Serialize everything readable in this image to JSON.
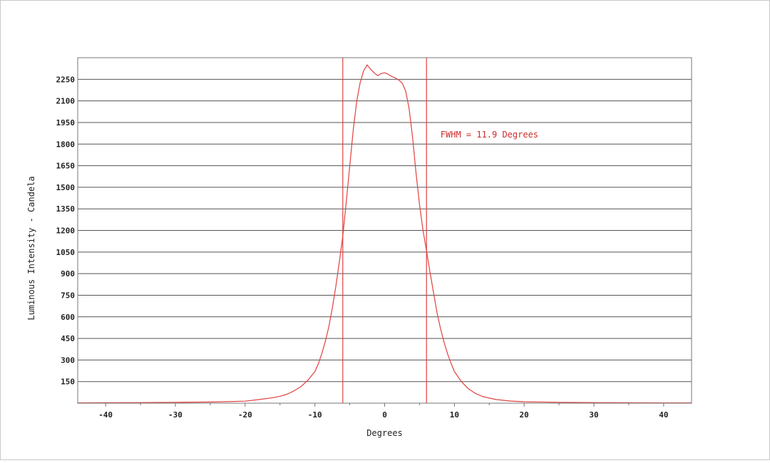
{
  "chart_data": {
    "type": "line",
    "title": "",
    "xlabel": "Degrees",
    "ylabel": "Luminous Intensity - Candela",
    "xlim": [
      -44,
      44
    ],
    "ylim": [
      0,
      2400
    ],
    "x_ticks": [
      -40,
      -30,
      -20,
      -10,
      0,
      10,
      20,
      30,
      40
    ],
    "x_tick_labels": [
      "-40",
      "-30",
      "-20",
      "-10",
      "0",
      "10",
      "20",
      "30",
      "40"
    ],
    "y_ticks": [
      150,
      300,
      450,
      600,
      750,
      900,
      1050,
      1200,
      1350,
      1500,
      1650,
      1800,
      1950,
      2100,
      2250
    ],
    "y_tick_labels": [
      "150",
      "300",
      "450",
      "600",
      "750",
      "900",
      "1050",
      "1200",
      "1350",
      "1500",
      "1650",
      "1800",
      "1950",
      "2100",
      "2250"
    ],
    "grid": "horizontal",
    "series": [
      {
        "color": "#e0413f",
        "x": [
          -44,
          -40,
          -35,
          -30,
          -25,
          -20,
          -18,
          -16,
          -15,
          -14,
          -13,
          -12,
          -11,
          -10,
          -9.5,
          -9,
          -8.5,
          -8,
          -7.5,
          -7,
          -6.5,
          -6,
          -5.5,
          -5,
          -4.5,
          -4,
          -3.5,
          -3,
          -2.5,
          -2,
          -1.5,
          -1,
          -0.5,
          0,
          0.5,
          1,
          1.5,
          2,
          2.5,
          3,
          3.5,
          4,
          4.5,
          5,
          5.5,
          6,
          6.5,
          7,
          7.5,
          8,
          8.5,
          9,
          9.5,
          10,
          11,
          12,
          13,
          14,
          15,
          16,
          18,
          20,
          25,
          30,
          35,
          40,
          44
        ],
        "y": [
          2,
          3,
          4,
          6,
          8,
          14,
          25,
          38,
          48,
          62,
          85,
          115,
          160,
          220,
          275,
          345,
          430,
          530,
          660,
          810,
          980,
          1160,
          1400,
          1650,
          1900,
          2100,
          2230,
          2310,
          2350,
          2320,
          2295,
          2275,
          2290,
          2295,
          2285,
          2270,
          2260,
          2245,
          2225,
          2170,
          2050,
          1850,
          1600,
          1380,
          1200,
          1060,
          910,
          770,
          630,
          520,
          425,
          345,
          280,
          220,
          150,
          100,
          68,
          47,
          35,
          25,
          15,
          10,
          6,
          4,
          3,
          2,
          2
        ]
      }
    ],
    "markers": [
      {
        "x": -6,
        "color": "#e0413f"
      },
      {
        "x": 6,
        "color": "#e0413f"
      }
    ],
    "annotation": {
      "text": "FWHM = 11.9 Degrees",
      "x": 8,
      "y": 1865,
      "color": "#cc2b2b"
    },
    "colors": {
      "curve": "#e0413f",
      "grid": "#555555",
      "axis": "#777777",
      "text": "#222222"
    }
  }
}
